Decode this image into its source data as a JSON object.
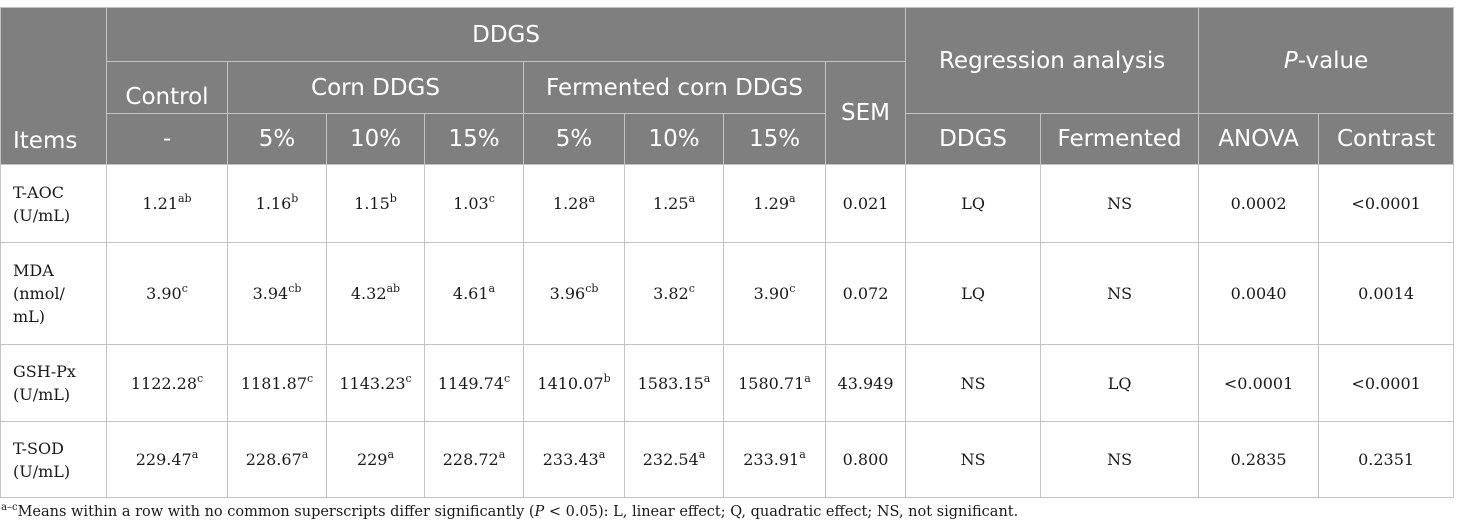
{
  "header": {
    "items": "Items",
    "ddgs": "DDGS",
    "regression": "Regression analysis",
    "pvalue": "P-value",
    "control": "Control",
    "corn": "Corn DDGS",
    "fermented_corn": "Fermented corn DDGS",
    "sem": "SEM",
    "control_level": "-",
    "levels": [
      "5%",
      "10%",
      "15%",
      "5%",
      "10%",
      "15%"
    ],
    "reg_cols": [
      "DDGS",
      "Fermented"
    ],
    "p_cols": [
      "ANOVA",
      "Contrast"
    ]
  },
  "rows": [
    {
      "item_lines": [
        "T-AOC",
        "(U/mL)"
      ],
      "values": [
        {
          "v": "1.21",
          "s": "ab"
        },
        {
          "v": "1.16",
          "s": "b"
        },
        {
          "v": "1.15",
          "s": "b"
        },
        {
          "v": "1.03",
          "s": "c"
        },
        {
          "v": "1.28",
          "s": "a"
        },
        {
          "v": "1.25",
          "s": "a"
        },
        {
          "v": "1.29",
          "s": "a"
        }
      ],
      "sem": "0.021",
      "ddgs": "LQ",
      "fermented": "NS",
      "anova": "0.0002",
      "contrast": "<0.0001"
    },
    {
      "item_lines": [
        "MDA",
        "(nmol/",
        "mL)"
      ],
      "values": [
        {
          "v": "3.90",
          "s": "c"
        },
        {
          "v": "3.94",
          "s": "cb"
        },
        {
          "v": "4.32",
          "s": "ab"
        },
        {
          "v": "4.61",
          "s": "a"
        },
        {
          "v": "3.96",
          "s": "cb"
        },
        {
          "v": "3.82",
          "s": "c"
        },
        {
          "v": "3.90",
          "s": "c"
        }
      ],
      "sem": "0.072",
      "ddgs": "LQ",
      "fermented": "NS",
      "anova": "0.0040",
      "contrast": "0.0014"
    },
    {
      "item_lines": [
        "GSH-Px",
        "(U/mL)"
      ],
      "values": [
        {
          "v": "1122.28",
          "s": "c"
        },
        {
          "v": "1181.87",
          "s": "c"
        },
        {
          "v": "1143.23",
          "s": "c"
        },
        {
          "v": "1149.74",
          "s": "c"
        },
        {
          "v": "1410.07",
          "s": "b"
        },
        {
          "v": "1583.15",
          "s": "a"
        },
        {
          "v": "1580.71",
          "s": "a"
        }
      ],
      "sem": "43.949",
      "ddgs": "NS",
      "fermented": "LQ",
      "anova": "<0.0001",
      "contrast": "<0.0001"
    },
    {
      "item_lines": [
        "T-SOD",
        "(U/mL)"
      ],
      "values": [
        {
          "v": "229.47",
          "s": "a"
        },
        {
          "v": "228.67",
          "s": "a"
        },
        {
          "v": "229",
          "s": "a"
        },
        {
          "v": "228.72",
          "s": "a"
        },
        {
          "v": "233.43",
          "s": "a"
        },
        {
          "v": "232.54",
          "s": "a"
        },
        {
          "v": "233.91",
          "s": "a"
        }
      ],
      "sem": "0.800",
      "ddgs": "NS",
      "fermented": "NS",
      "anova": "0.2835",
      "contrast": "0.2351"
    }
  ],
  "footnote": {
    "marker": "a–c",
    "text_before": "Means within a row with no common superscripts differ significantly (",
    "italic_p": "P",
    "text_after": " < 0.05): L, linear effect; Q, quadratic effect; NS, not significant."
  }
}
